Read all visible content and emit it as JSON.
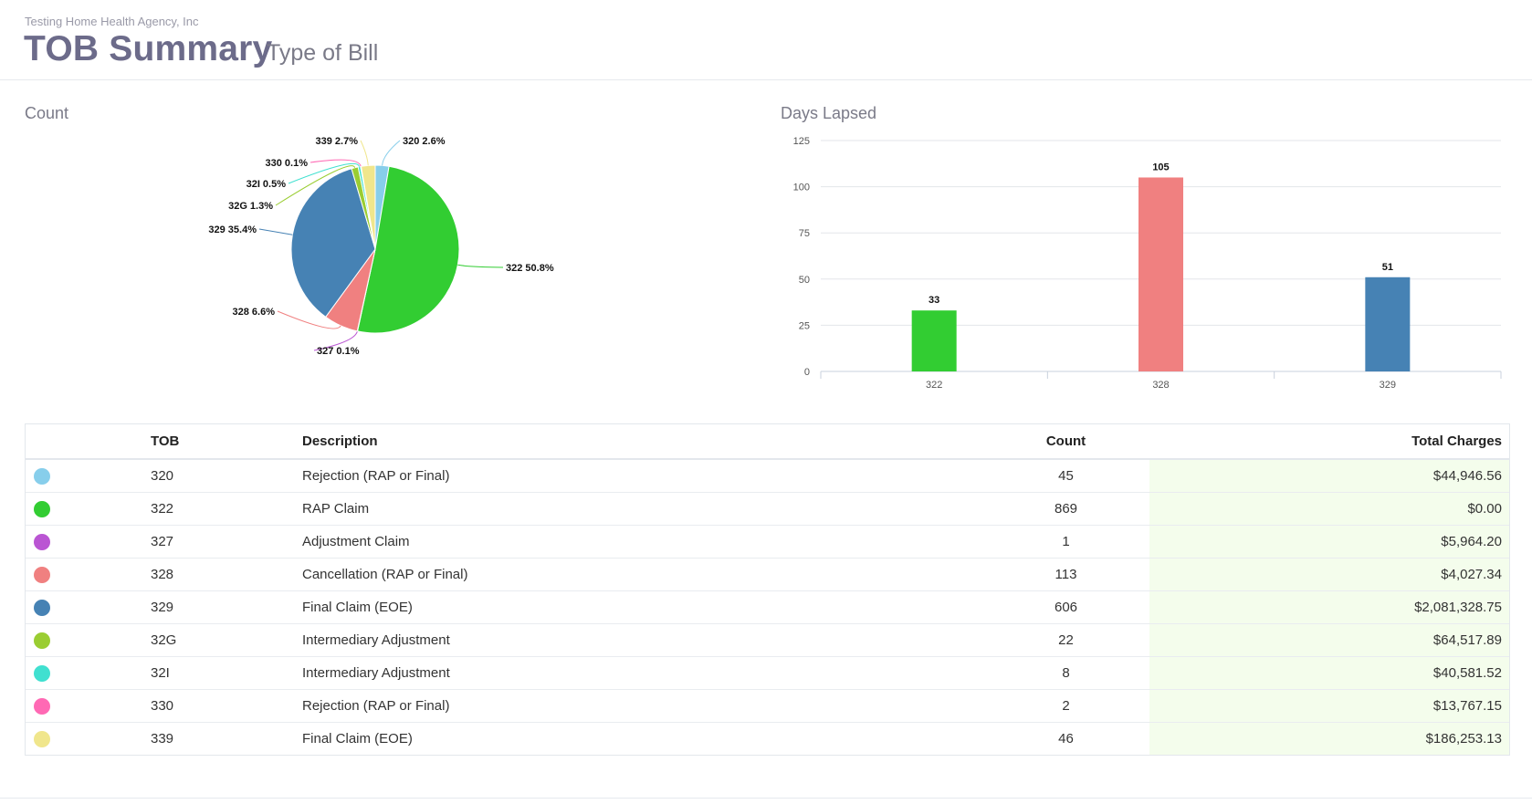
{
  "header": {
    "agency": "Testing Home Health Agency, Inc",
    "title": "TOB Summary",
    "subtitle": "Type of Bill"
  },
  "chart_data": [
    {
      "type": "pie",
      "title": "Count",
      "slices": [
        {
          "label": "320",
          "pct_label": "2.6%",
          "value": 45,
          "color": "#87ceeb"
        },
        {
          "label": "322",
          "pct_label": "50.8%",
          "value": 869,
          "color": "#32cd32"
        },
        {
          "label": "327",
          "pct_label": "0.1%",
          "value": 1,
          "color": "#ba55d3"
        },
        {
          "label": "328",
          "pct_label": "6.6%",
          "value": 113,
          "color": "#f08080"
        },
        {
          "label": "329",
          "pct_label": "35.4%",
          "value": 606,
          "color": "#4682b4"
        },
        {
          "label": "32G",
          "pct_label": "1.3%",
          "value": 22,
          "color": "#9acd32"
        },
        {
          "label": "32I",
          "pct_label": "0.5%",
          "value": 8,
          "color": "#40e0d0"
        },
        {
          "label": "330",
          "pct_label": "0.1%",
          "value": 2,
          "color": "#ff69b4"
        },
        {
          "label": "339",
          "pct_label": "2.7%",
          "value": 46,
          "color": "#f0e68c"
        }
      ]
    },
    {
      "type": "bar",
      "title": "Days Lapsed",
      "categories": [
        "322",
        "328",
        "329"
      ],
      "values": [
        33,
        105,
        51
      ],
      "colors": [
        "#32cd32",
        "#f08080",
        "#4682b4"
      ],
      "yticks": [
        0,
        25,
        50,
        75,
        100,
        125
      ],
      "ylim": [
        0,
        125
      ],
      "grid": true
    }
  ],
  "table": {
    "headers": {
      "tob": "TOB",
      "description": "Description",
      "count": "Count",
      "charges": "Total Charges"
    },
    "rows": [
      {
        "color": "#87ceeb",
        "tob": "320",
        "description": "Rejection (RAP or Final)",
        "count": "45",
        "charges": "$44,946.56"
      },
      {
        "color": "#32cd32",
        "tob": "322",
        "description": "RAP Claim",
        "count": "869",
        "charges": "$0.00"
      },
      {
        "color": "#ba55d3",
        "tob": "327",
        "description": "Adjustment Claim",
        "count": "1",
        "charges": "$5,964.20"
      },
      {
        "color": "#f08080",
        "tob": "328",
        "description": "Cancellation (RAP or Final)",
        "count": "113",
        "charges": "$4,027.34"
      },
      {
        "color": "#4682b4",
        "tob": "329",
        "description": "Final Claim (EOE)",
        "count": "606",
        "charges": "$2,081,328.75"
      },
      {
        "color": "#9acd32",
        "tob": "32G",
        "description": "Intermediary Adjustment",
        "count": "22",
        "charges": "$64,517.89"
      },
      {
        "color": "#40e0d0",
        "tob": "32I",
        "description": "Intermediary Adjustment",
        "count": "8",
        "charges": "$40,581.52"
      },
      {
        "color": "#ff69b4",
        "tob": "330",
        "description": "Rejection (RAP or Final)",
        "count": "2",
        "charges": "$13,767.15"
      },
      {
        "color": "#f0e68c",
        "tob": "339",
        "description": "Final Claim (EOE)",
        "count": "46",
        "charges": "$186,253.13"
      }
    ]
  }
}
